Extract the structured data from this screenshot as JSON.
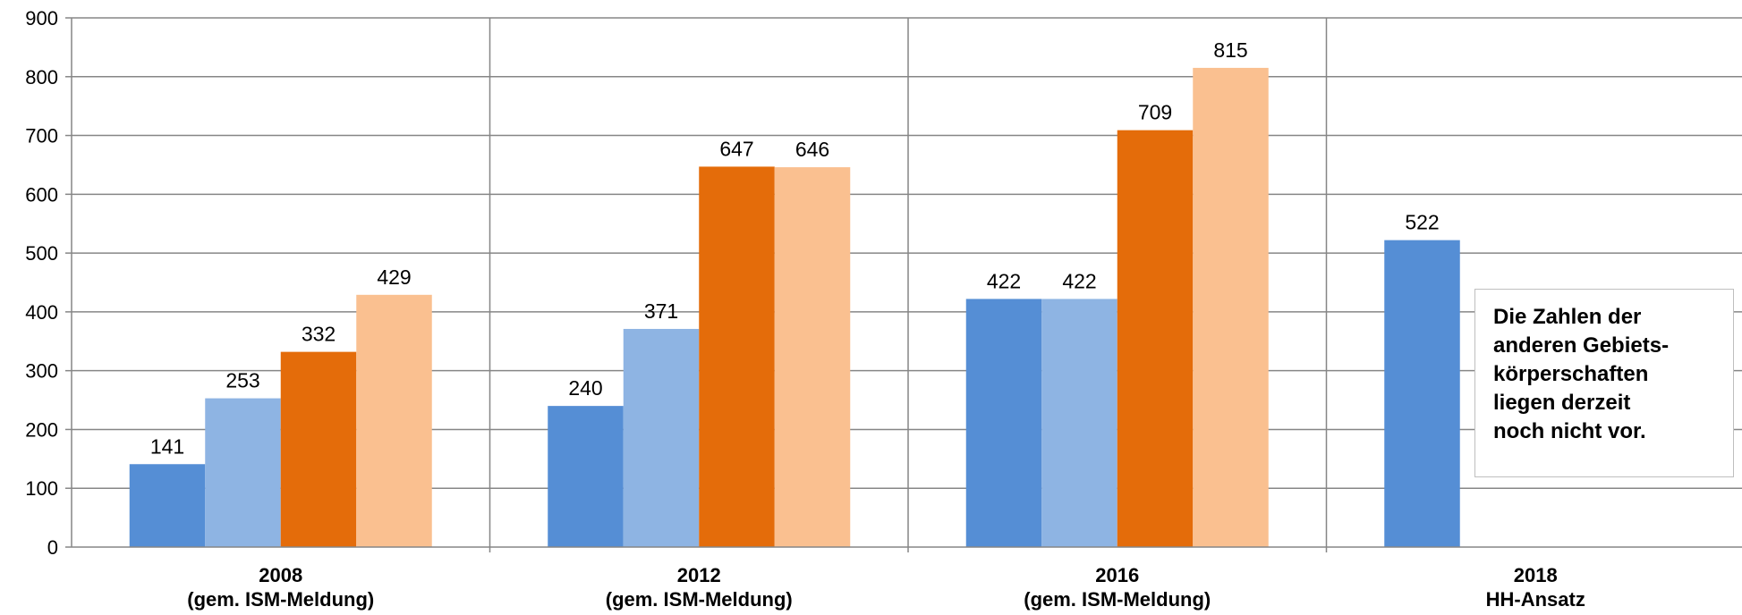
{
  "chart_data": {
    "type": "bar",
    "categories": [
      [
        "2008",
        "(gem. ISM-Meldung)"
      ],
      [
        "2012",
        "(gem. ISM-Meldung)"
      ],
      [
        "2016",
        "(gem. ISM-Meldung)"
      ],
      [
        "2018",
        "HH-Ansatz"
      ]
    ],
    "series": [
      {
        "color": "#558ed5",
        "values": [
          141,
          240,
          422,
          522
        ]
      },
      {
        "color": "#8eb4e3",
        "values": [
          253,
          371,
          422,
          null
        ]
      },
      {
        "color": "#e46c0a",
        "values": [
          332,
          647,
          709,
          null
        ]
      },
      {
        "color": "#fac090",
        "values": [
          429,
          646,
          815,
          null
        ]
      }
    ],
    "ylim": [
      0,
      900
    ],
    "yticks": [
      0,
      100,
      200,
      300,
      400,
      500,
      600,
      700,
      800,
      900
    ],
    "grid": true,
    "title": "",
    "xlabel": "",
    "ylabel": "",
    "annotation": {
      "lines": [
        "Die Zahlen der",
        "anderen Gebiets-",
        "körperschaften",
        "liegen derzeit",
        "noch nicht vor."
      ]
    }
  }
}
